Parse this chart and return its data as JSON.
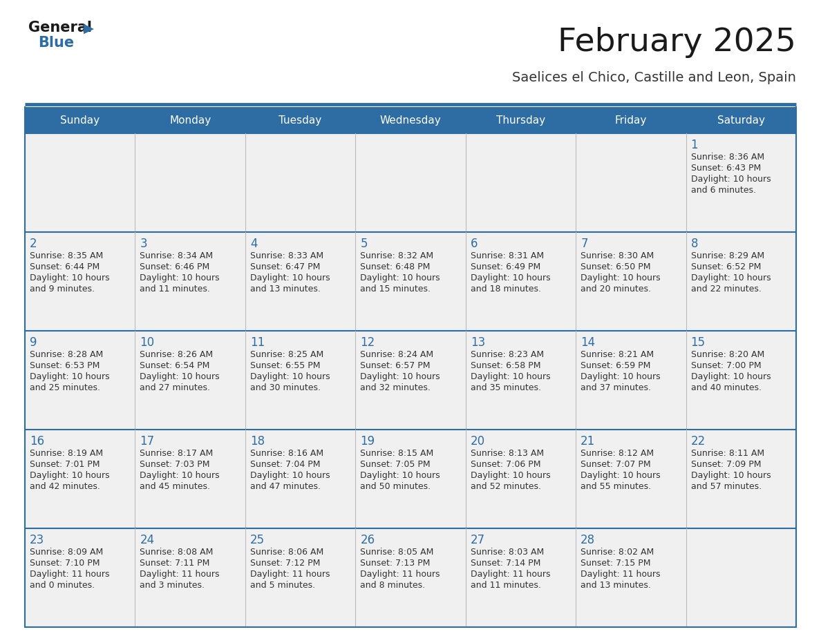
{
  "title": "February 2025",
  "subtitle": "Saelices el Chico, Castille and Leon, Spain",
  "header_bg": "#2E6DA4",
  "header_text": "#FFFFFF",
  "cell_bg": "#F0F0F0",
  "day_headers": [
    "Sunday",
    "Monday",
    "Tuesday",
    "Wednesday",
    "Thursday",
    "Friday",
    "Saturday"
  ],
  "title_color": "#1a1a1a",
  "subtitle_color": "#333333",
  "day_num_color": "#2E6DA4",
  "cell_text_color": "#333333",
  "line_color": "#2E6DA4",
  "cell_border_color": "#bbbbbb",
  "calendar_data": [
    [
      null,
      null,
      null,
      null,
      null,
      null,
      {
        "day": 1,
        "sunrise": "8:36 AM",
        "sunset": "6:43 PM",
        "daylight_h": "10 hours",
        "daylight_m": "and 6 minutes."
      }
    ],
    [
      {
        "day": 2,
        "sunrise": "8:35 AM",
        "sunset": "6:44 PM",
        "daylight_h": "10 hours",
        "daylight_m": "and 9 minutes."
      },
      {
        "day": 3,
        "sunrise": "8:34 AM",
        "sunset": "6:46 PM",
        "daylight_h": "10 hours",
        "daylight_m": "and 11 minutes."
      },
      {
        "day": 4,
        "sunrise": "8:33 AM",
        "sunset": "6:47 PM",
        "daylight_h": "10 hours",
        "daylight_m": "and 13 minutes."
      },
      {
        "day": 5,
        "sunrise": "8:32 AM",
        "sunset": "6:48 PM",
        "daylight_h": "10 hours",
        "daylight_m": "and 15 minutes."
      },
      {
        "day": 6,
        "sunrise": "8:31 AM",
        "sunset": "6:49 PM",
        "daylight_h": "10 hours",
        "daylight_m": "and 18 minutes."
      },
      {
        "day": 7,
        "sunrise": "8:30 AM",
        "sunset": "6:50 PM",
        "daylight_h": "10 hours",
        "daylight_m": "and 20 minutes."
      },
      {
        "day": 8,
        "sunrise": "8:29 AM",
        "sunset": "6:52 PM",
        "daylight_h": "10 hours",
        "daylight_m": "and 22 minutes."
      }
    ],
    [
      {
        "day": 9,
        "sunrise": "8:28 AM",
        "sunset": "6:53 PM",
        "daylight_h": "10 hours",
        "daylight_m": "and 25 minutes."
      },
      {
        "day": 10,
        "sunrise": "8:26 AM",
        "sunset": "6:54 PM",
        "daylight_h": "10 hours",
        "daylight_m": "and 27 minutes."
      },
      {
        "day": 11,
        "sunrise": "8:25 AM",
        "sunset": "6:55 PM",
        "daylight_h": "10 hours",
        "daylight_m": "and 30 minutes."
      },
      {
        "day": 12,
        "sunrise": "8:24 AM",
        "sunset": "6:57 PM",
        "daylight_h": "10 hours",
        "daylight_m": "and 32 minutes."
      },
      {
        "day": 13,
        "sunrise": "8:23 AM",
        "sunset": "6:58 PM",
        "daylight_h": "10 hours",
        "daylight_m": "and 35 minutes."
      },
      {
        "day": 14,
        "sunrise": "8:21 AM",
        "sunset": "6:59 PM",
        "daylight_h": "10 hours",
        "daylight_m": "and 37 minutes."
      },
      {
        "day": 15,
        "sunrise": "8:20 AM",
        "sunset": "7:00 PM",
        "daylight_h": "10 hours",
        "daylight_m": "and 40 minutes."
      }
    ],
    [
      {
        "day": 16,
        "sunrise": "8:19 AM",
        "sunset": "7:01 PM",
        "daylight_h": "10 hours",
        "daylight_m": "and 42 minutes."
      },
      {
        "day": 17,
        "sunrise": "8:17 AM",
        "sunset": "7:03 PM",
        "daylight_h": "10 hours",
        "daylight_m": "and 45 minutes."
      },
      {
        "day": 18,
        "sunrise": "8:16 AM",
        "sunset": "7:04 PM",
        "daylight_h": "10 hours",
        "daylight_m": "and 47 minutes."
      },
      {
        "day": 19,
        "sunrise": "8:15 AM",
        "sunset": "7:05 PM",
        "daylight_h": "10 hours",
        "daylight_m": "and 50 minutes."
      },
      {
        "day": 20,
        "sunrise": "8:13 AM",
        "sunset": "7:06 PM",
        "daylight_h": "10 hours",
        "daylight_m": "and 52 minutes."
      },
      {
        "day": 21,
        "sunrise": "8:12 AM",
        "sunset": "7:07 PM",
        "daylight_h": "10 hours",
        "daylight_m": "and 55 minutes."
      },
      {
        "day": 22,
        "sunrise": "8:11 AM",
        "sunset": "7:09 PM",
        "daylight_h": "10 hours",
        "daylight_m": "and 57 minutes."
      }
    ],
    [
      {
        "day": 23,
        "sunrise": "8:09 AM",
        "sunset": "7:10 PM",
        "daylight_h": "11 hours",
        "daylight_m": "and 0 minutes."
      },
      {
        "day": 24,
        "sunrise": "8:08 AM",
        "sunset": "7:11 PM",
        "daylight_h": "11 hours",
        "daylight_m": "and 3 minutes."
      },
      {
        "day": 25,
        "sunrise": "8:06 AM",
        "sunset": "7:12 PM",
        "daylight_h": "11 hours",
        "daylight_m": "and 5 minutes."
      },
      {
        "day": 26,
        "sunrise": "8:05 AM",
        "sunset": "7:13 PM",
        "daylight_h": "11 hours",
        "daylight_m": "and 8 minutes."
      },
      {
        "day": 27,
        "sunrise": "8:03 AM",
        "sunset": "7:14 PM",
        "daylight_h": "11 hours",
        "daylight_m": "and 11 minutes."
      },
      {
        "day": 28,
        "sunrise": "8:02 AM",
        "sunset": "7:15 PM",
        "daylight_h": "11 hours",
        "daylight_m": "and 13 minutes."
      },
      null
    ]
  ]
}
